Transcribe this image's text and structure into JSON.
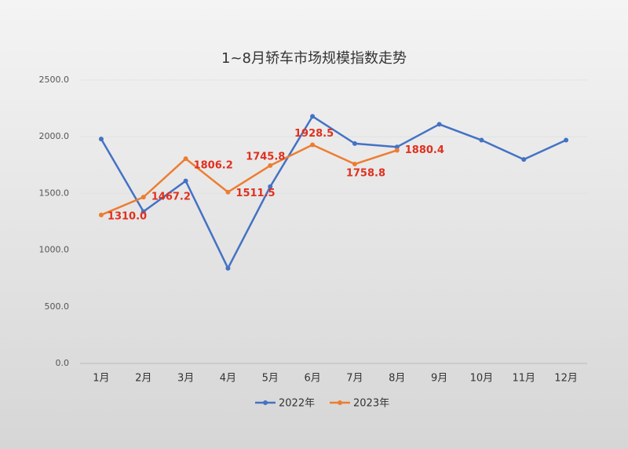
{
  "chart_data": {
    "type": "line",
    "title": "1~8月轿车市场规模指数走势",
    "categories": [
      "1月",
      "2月",
      "3月",
      "4月",
      "5月",
      "6月",
      "7月",
      "8月",
      "9月",
      "10月",
      "11月",
      "12月"
    ],
    "series": [
      {
        "name": "2022年",
        "color": "#4472c4",
        "values": [
          1980,
          1340,
          1610,
          840,
          1560,
          2180,
          1940,
          1910,
          2110,
          1970,
          1800,
          1970
        ]
      },
      {
        "name": "2023年",
        "color": "#ed7d31",
        "values": [
          1310.0,
          1467.2,
          1806.2,
          1511.5,
          1745.8,
          1928.5,
          1758.8,
          1880.4,
          null,
          null,
          null,
          null
        ],
        "value_labels": [
          "1310.0",
          "1467.2",
          "1806.2",
          "1511.5",
          "1745.8",
          "1928.5",
          "1758.8",
          "1880.4",
          null,
          null,
          null,
          null
        ]
      }
    ],
    "ylim": [
      0,
      2500
    ],
    "yticks": [
      {
        "value": 0,
        "label": "0.0"
      },
      {
        "value": 500,
        "label": "500.0"
      },
      {
        "value": 1000,
        "label": "1000.0"
      },
      {
        "value": 1500,
        "label": "1500.0"
      },
      {
        "value": 2000,
        "label": "2000.0"
      },
      {
        "value": 2500,
        "label": "2500.0"
      }
    ],
    "grid": true,
    "legend": "bottom"
  }
}
